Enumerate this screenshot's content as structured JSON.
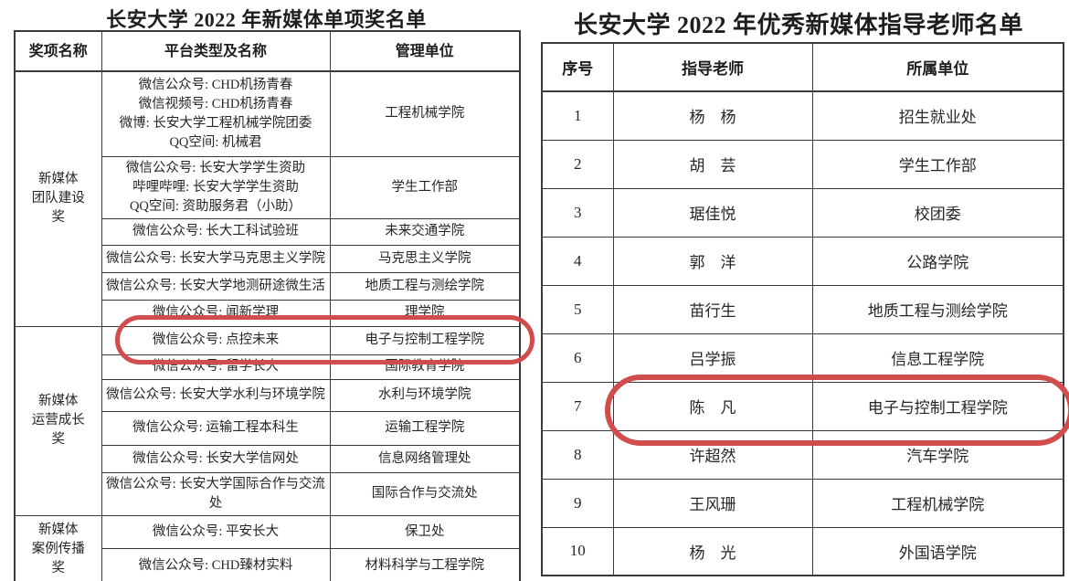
{
  "page": {
    "background_color": "#ffffff",
    "text_color": "#262626",
    "border_color": "#3a3a3a",
    "annotation_color": "#d14c4c"
  },
  "left_table": {
    "title": "长安大学 2022 年新媒体单项奖名单",
    "columns": [
      "奖项名称",
      "平台类型及名称",
      "管理单位"
    ],
    "groups": [
      {
        "award": "新媒体团队建设奖",
        "award_lines": [
          "新媒体",
          "团队建设",
          "奖"
        ],
        "rows": [
          {
            "platform_lines": [
              "微信公众号: CHD机扬青春",
              "微信视频号: CHD机扬青春",
              "微博: 长安大学工程机械学院团委",
              "QQ空间: 机械君"
            ],
            "unit": "工程机械学院"
          },
          {
            "platform_lines": [
              "微信公众号: 长安大学学生资助",
              "哔哩哔哩: 长安大学学生资助",
              "QQ空间: 资助服务君（小助）"
            ],
            "unit": "学生工作部"
          },
          {
            "platform_lines": [
              "微信公众号: 长大工科试验班"
            ],
            "unit": "未来交通学院"
          },
          {
            "platform_lines": [
              "微信公众号: 长安大学马克思主义学院"
            ],
            "unit": "马克思主义学院"
          },
          {
            "platform_lines": [
              "微信公众号: 长安大学地测研途微生活"
            ],
            "unit": "地质工程与测绘学院"
          },
          {
            "platform_lines": [
              "微信公众号: 闻新学理"
            ],
            "unit": "理学院"
          }
        ]
      },
      {
        "award": "新媒体运营成长奖",
        "award_lines": [
          "新媒体",
          "运营成长",
          "奖"
        ],
        "rows": [
          {
            "platform_lines": [
              "微信公众号: 点控未来"
            ],
            "unit": "电子与控制工程学院",
            "highlighted": true
          },
          {
            "platform_lines": [
              "微信公众号: 留学长大"
            ],
            "unit": "国际教育学院"
          },
          {
            "platform_lines": [
              "微信公众号: 长安大学水利与环境学院"
            ],
            "unit": "水利与环境学院"
          },
          {
            "platform_lines": [
              "微信公众号: 运输工程本科生"
            ],
            "unit": "运输工程学院"
          },
          {
            "platform_lines": [
              "微信公众号: 长安大学信网处"
            ],
            "unit": "信息网络管理处"
          },
          {
            "platform_lines": [
              "微信公众号: 长安大学国际合作与交流处"
            ],
            "unit": "国际合作与交流处"
          }
        ]
      },
      {
        "award": "新媒体案例传播奖",
        "award_lines": [
          "新媒体",
          "案例传播",
          "奖"
        ],
        "rows": [
          {
            "platform_lines": [
              "微信公众号: 平安长大"
            ],
            "unit": "保卫处"
          },
          {
            "platform_lines": [
              "微信公众号: CHD臻材实料"
            ],
            "unit": "材料科学与工程学院"
          }
        ]
      }
    ]
  },
  "right_table": {
    "title": "长安大学 2022 年优秀新媒体指导老师名单",
    "columns": [
      "序号",
      "指导老师",
      "所属单位"
    ],
    "rows": [
      {
        "no": "1",
        "teacher": "杨　杨",
        "unit": "招生就业处"
      },
      {
        "no": "2",
        "teacher": "胡　芸",
        "unit": "学生工作部"
      },
      {
        "no": "3",
        "teacher": "琚佳悦",
        "unit": "校团委"
      },
      {
        "no": "4",
        "teacher": "郭　洋",
        "unit": "公路学院"
      },
      {
        "no": "5",
        "teacher": "苗行生",
        "unit": "地质工程与测绘学院"
      },
      {
        "no": "6",
        "teacher": "吕学振",
        "unit": "信息工程学院"
      },
      {
        "no": "7",
        "teacher": "陈　凡",
        "unit": "电子与控制工程学院",
        "highlighted": true
      },
      {
        "no": "8",
        "teacher": "许超然",
        "unit": "汽车学院"
      },
      {
        "no": "9",
        "teacher": "王风珊",
        "unit": "工程机械学院"
      },
      {
        "no": "10",
        "teacher": "杨　光",
        "unit": "外国语学院"
      }
    ]
  },
  "annotations": {
    "left_oval_target": "微信公众号: 点控未来 — 电子与控制工程学院",
    "right_oval_target": "7 陈凡 — 电子与控制工程学院"
  }
}
